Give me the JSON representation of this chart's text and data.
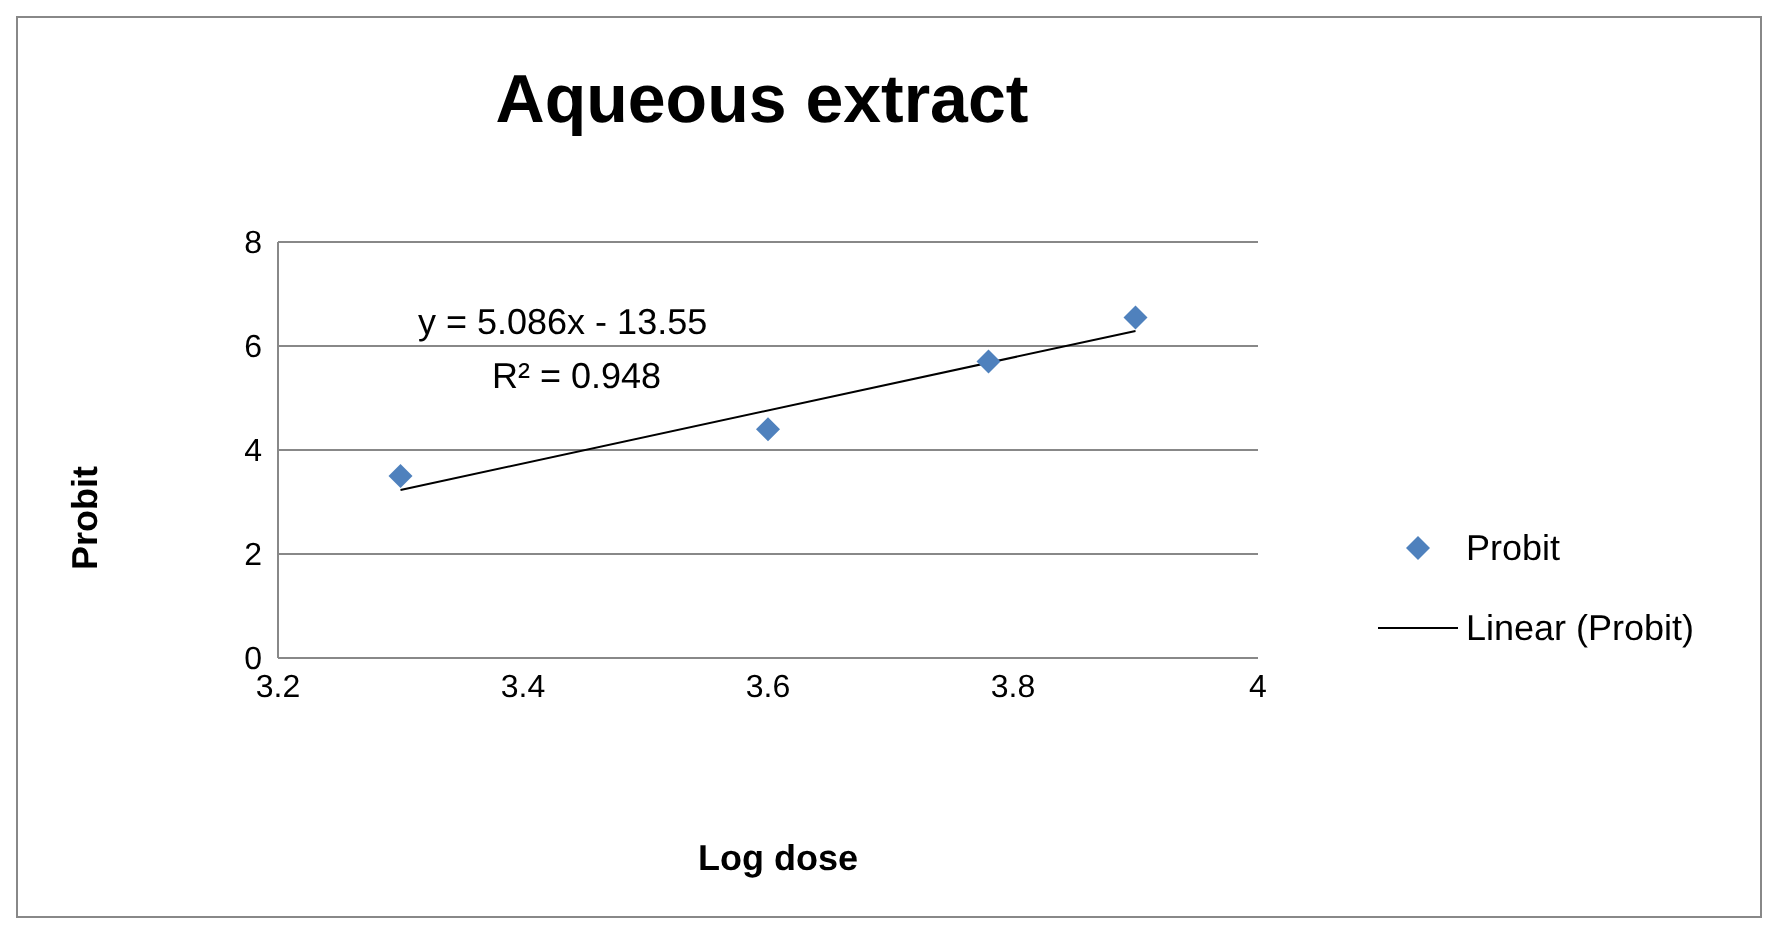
{
  "chart_data": {
    "type": "scatter",
    "title": "Aqueous extract",
    "xlabel": "Log dose",
    "ylabel": "Probit",
    "xlim": [
      3.2,
      4
    ],
    "xticks": [
      3.2,
      3.4,
      3.6,
      3.8,
      4
    ],
    "ylim": [
      0,
      8
    ],
    "yticks": [
      0,
      2,
      4,
      6,
      8
    ],
    "grid": "y",
    "legend": "right",
    "marker": "diamond",
    "annotations": [
      "y = 5.086x - 13.55",
      "R² = 0.948"
    ],
    "series": [
      {
        "name": "Probit",
        "color": "#4f81bd",
        "x": [
          3.3,
          3.6,
          3.78,
          3.9
        ],
        "values": [
          3.5,
          4.4,
          5.7,
          6.55
        ]
      },
      {
        "name": "Linear (Probit)",
        "type": "line",
        "color": "#000000",
        "marker": "none",
        "x": [
          3.3,
          3.9
        ],
        "values": [
          3.23,
          6.29
        ]
      }
    ]
  }
}
